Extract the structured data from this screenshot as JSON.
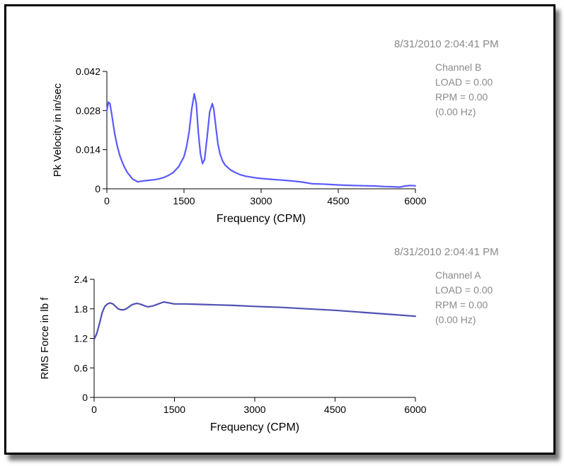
{
  "chart_data": [
    {
      "type": "line",
      "timestamp": "8/31/2010 2:04:41 PM",
      "info": [
        "Channel B",
        "LOAD = 0.00",
        "RPM = 0.00",
        "(0.00 Hz)"
      ],
      "xlabel": "Frequency (CPM)",
      "ylabel": "Pk Velocity in in/sec",
      "xlim": [
        0,
        6000
      ],
      "ylim": [
        0,
        0.042
      ],
      "xticks": [
        "0",
        "1500",
        "3000",
        "4500",
        "6000"
      ],
      "yticks": [
        "0",
        "0.014",
        "0.028",
        "0.042"
      ],
      "grid": false,
      "series": [
        {
          "color": "#5a5aff",
          "x": [
            0,
            30,
            60,
            100,
            150,
            200,
            250,
            300,
            350,
            400,
            500,
            600,
            700,
            800,
            900,
            1000,
            1100,
            1200,
            1300,
            1400,
            1500,
            1550,
            1600,
            1650,
            1700,
            1740,
            1780,
            1820,
            1860,
            1900,
            1950,
            2000,
            2050,
            2080,
            2120,
            2160,
            2200,
            2250,
            2300,
            2400,
            2500,
            2600,
            2700,
            2800,
            2900,
            3000,
            3200,
            3400,
            3600,
            3800,
            4000,
            4200,
            4400,
            4600,
            4800,
            5000,
            5200,
            5400,
            5600,
            5700,
            5800,
            5900,
            6000
          ],
          "y": [
            0.028,
            0.031,
            0.0305,
            0.026,
            0.02,
            0.0155,
            0.012,
            0.0095,
            0.0075,
            0.0058,
            0.0035,
            0.0025,
            0.0028,
            0.003,
            0.0032,
            0.0035,
            0.004,
            0.0048,
            0.006,
            0.008,
            0.0115,
            0.015,
            0.0205,
            0.0285,
            0.034,
            0.0305,
            0.02,
            0.0125,
            0.009,
            0.0105,
            0.0185,
            0.0275,
            0.0305,
            0.0285,
            0.022,
            0.016,
            0.0125,
            0.01,
            0.0085,
            0.0068,
            0.0058,
            0.005,
            0.0045,
            0.0042,
            0.0039,
            0.0037,
            0.0034,
            0.0031,
            0.0028,
            0.0024,
            0.0018,
            0.0017,
            0.0015,
            0.0013,
            0.0012,
            0.0011,
            0.001,
            0.0008,
            0.0007,
            0.0006,
            0.001,
            0.0012,
            0.0011
          ]
        }
      ]
    },
    {
      "type": "line",
      "timestamp": "8/31/2010 2:04:41 PM",
      "info": [
        "Channel A",
        "LOAD = 0.00",
        "RPM = 0.00",
        "(0.00 Hz)"
      ],
      "xlabel": "Frequency (CPM)",
      "ylabel": "RMS Force in lb f",
      "xlim": [
        0,
        6000
      ],
      "ylim": [
        0,
        2.4
      ],
      "xticks": [
        "0",
        "1500",
        "3000",
        "4500",
        "6000"
      ],
      "yticks": [
        "0",
        "0.6",
        "1.2",
        "1.8",
        "2.4"
      ],
      "grid": false,
      "series": [
        {
          "color": "#5050b4",
          "x": [
            0,
            50,
            100,
            150,
            200,
            250,
            300,
            350,
            400,
            450,
            500,
            550,
            600,
            650,
            700,
            750,
            800,
            850,
            900,
            950,
            1000,
            1050,
            1100,
            1150,
            1200,
            1250,
            1300,
            1350,
            1400,
            1500,
            1700,
            2000,
            2300,
            2600,
            3000,
            3500,
            4000,
            4500,
            5000,
            5500,
            6000
          ],
          "y": [
            1.18,
            1.3,
            1.5,
            1.72,
            1.85,
            1.9,
            1.92,
            1.9,
            1.85,
            1.8,
            1.78,
            1.78,
            1.8,
            1.84,
            1.88,
            1.9,
            1.91,
            1.9,
            1.88,
            1.86,
            1.84,
            1.85,
            1.86,
            1.88,
            1.9,
            1.92,
            1.94,
            1.93,
            1.92,
            1.9,
            1.9,
            1.89,
            1.88,
            1.87,
            1.85,
            1.83,
            1.8,
            1.77,
            1.73,
            1.69,
            1.65
          ]
        }
      ]
    }
  ]
}
